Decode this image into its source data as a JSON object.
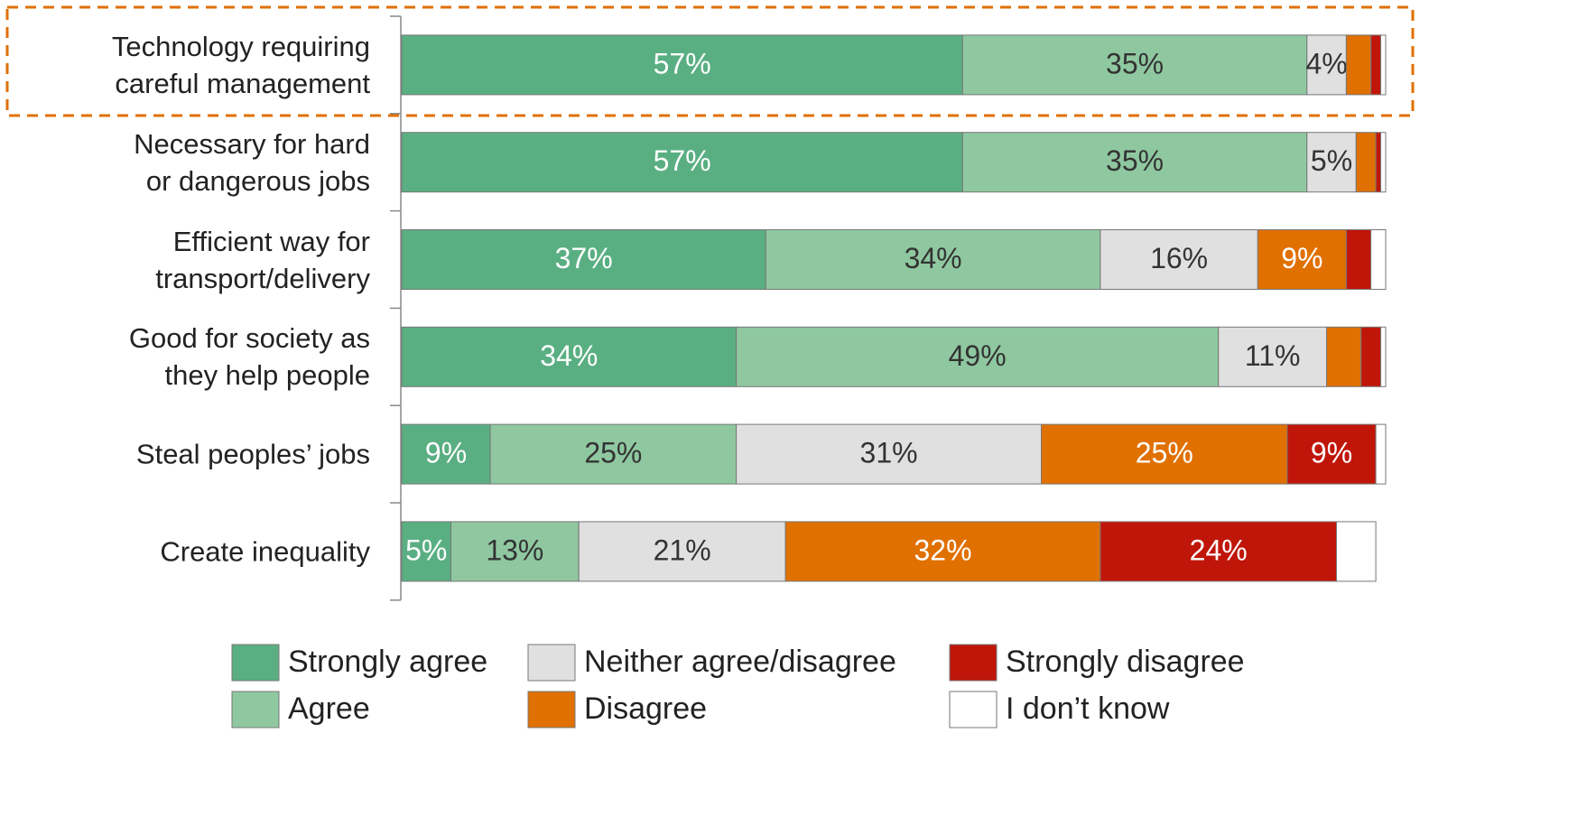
{
  "chart_data": {
    "type": "stacked-bar-horizontal",
    "categories": [
      "Technology requiring\ncareful management",
      "Necessary for hard\nor dangerous jobs",
      "Efficient way for\ntransport/delivery",
      "Good for society as\nthey help people",
      "Steal peoples’ jobs",
      "Create inequality"
    ],
    "xlim": [
      0,
      100
    ],
    "series": [
      {
        "name": "Strongly agree",
        "color": "#5aaf82",
        "values": [
          57,
          57,
          37,
          34,
          9,
          5
        ],
        "value_labels": [
          "57%",
          "57%",
          "37%",
          "34%",
          "9%",
          "5%"
        ]
      },
      {
        "name": "Agree",
        "color": "#8fc8a0",
        "values": [
          35,
          35,
          34,
          49,
          25,
          13
        ],
        "value_labels": [
          "35%",
          "35%",
          "34%",
          "49%",
          "25%",
          "13%"
        ]
      },
      {
        "name": "Neither agree/disagree",
        "color": "#e0e0e0",
        "values": [
          4,
          5,
          16,
          11,
          31,
          21
        ],
        "value_labels": [
          "4%",
          "5%",
          "16%",
          "11%",
          "31%",
          "21%"
        ]
      },
      {
        "name": "Disagree",
        "color": "#e07000",
        "values": [
          2.5,
          2,
          9,
          3.5,
          25,
          32
        ],
        "value_labels": [
          null,
          null,
          "9%",
          null,
          "25%",
          "32%"
        ]
      },
      {
        "name": "Strongly disagree",
        "color": "#c0160a",
        "values": [
          1,
          0.5,
          2.5,
          2,
          9,
          24
        ],
        "value_labels": [
          null,
          null,
          null,
          null,
          "9%",
          "24%"
        ]
      },
      {
        "name": "I don’t know",
        "color": "#ffffff",
        "values": [
          0.5,
          0.5,
          1.5,
          0.5,
          1,
          4
        ],
        "value_labels": [
          null,
          null,
          null,
          null,
          null,
          null
        ]
      }
    ]
  }
}
